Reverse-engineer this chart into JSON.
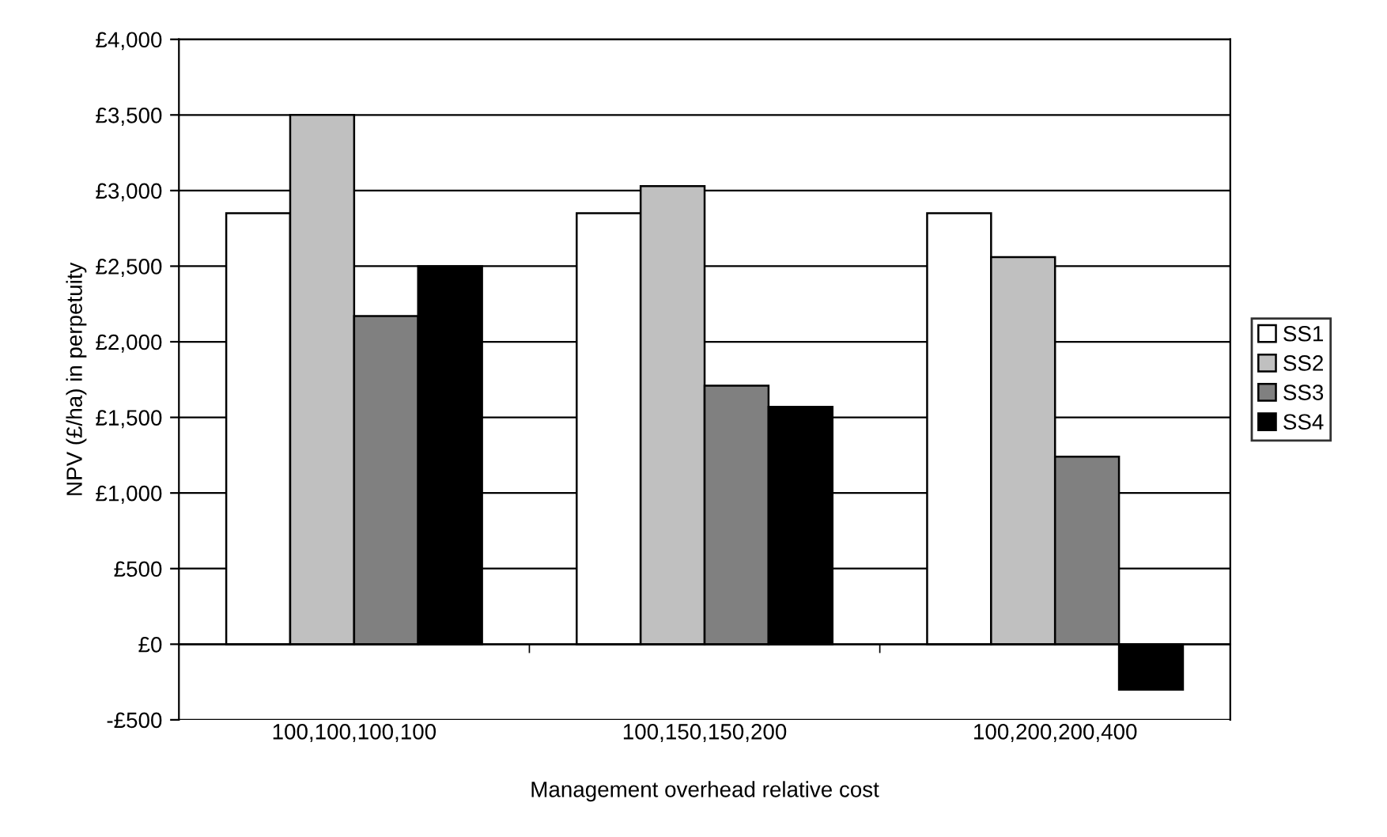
{
  "chart_data": {
    "type": "bar",
    "xlabel": "Management overhead relative cost",
    "ylabel": "NPV (£/ha) in perpetuity",
    "categories": [
      "100,100,100,100",
      "100,150,150,200",
      "100,200,200,400"
    ],
    "series": [
      {
        "name": "SS1",
        "color": "#ffffff",
        "values": [
          2850,
          2850,
          2850
        ]
      },
      {
        "name": "SS2",
        "color": "#c0c0c0",
        "values": [
          3500,
          3030,
          2560
        ]
      },
      {
        "name": "SS3",
        "color": "#808080",
        "values": [
          2170,
          1710,
          1240
        ]
      },
      {
        "name": "SS4",
        "color": "#000000",
        "values": [
          2500,
          1570,
          -300
        ]
      }
    ],
    "ylim": [
      -500,
      4000
    ],
    "yticks": [
      {
        "value": -500,
        "label": "-£500"
      },
      {
        "value": 0,
        "label": "£0"
      },
      {
        "value": 500,
        "label": "£500"
      },
      {
        "value": 1000,
        "label": "£1,000"
      },
      {
        "value": 1500,
        "label": "£1,500"
      },
      {
        "value": 2000,
        "label": "£2,000"
      },
      {
        "value": 2500,
        "label": "£2,500"
      },
      {
        "value": 3000,
        "label": "£3,000"
      },
      {
        "value": 3500,
        "label": "£3,500"
      },
      {
        "value": 4000,
        "label": "£4,000"
      }
    ],
    "grid": "y",
    "legend": "right"
  }
}
